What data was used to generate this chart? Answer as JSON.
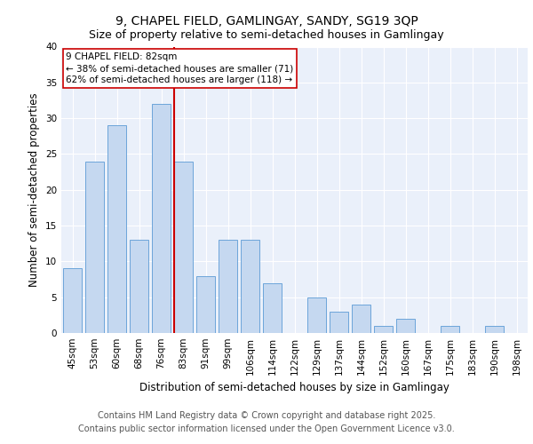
{
  "title": "9, CHAPEL FIELD, GAMLINGAY, SANDY, SG19 3QP",
  "subtitle": "Size of property relative to semi-detached houses in Gamlingay",
  "xlabel": "Distribution of semi-detached houses by size in Gamlingay",
  "ylabel": "Number of semi-detached properties",
  "categories": [
    "45sqm",
    "53sqm",
    "60sqm",
    "68sqm",
    "76sqm",
    "83sqm",
    "91sqm",
    "99sqm",
    "106sqm",
    "114sqm",
    "122sqm",
    "129sqm",
    "137sqm",
    "144sqm",
    "152sqm",
    "160sqm",
    "167sqm",
    "175sqm",
    "183sqm",
    "190sqm",
    "198sqm"
  ],
  "values": [
    9,
    24,
    29,
    13,
    32,
    24,
    8,
    13,
    13,
    7,
    0,
    5,
    3,
    4,
    1,
    2,
    0,
    1,
    0,
    1,
    0
  ],
  "bar_color": "#c5d8f0",
  "bar_edge_color": "#5b9bd5",
  "annotation_title": "9 CHAPEL FIELD: 82sqm",
  "annotation_line1": "← 38% of semi-detached houses are smaller (71)",
  "annotation_line2": "62% of semi-detached houses are larger (118) →",
  "annotation_box_color": "#ffffff",
  "annotation_box_edge": "#cc0000",
  "vline_color": "#cc0000",
  "vline_x": 4.57,
  "ylim": [
    0,
    40
  ],
  "yticks": [
    0,
    5,
    10,
    15,
    20,
    25,
    30,
    35,
    40
  ],
  "footer_line1": "Contains HM Land Registry data © Crown copyright and database right 2025.",
  "footer_line2": "Contains public sector information licensed under the Open Government Licence v3.0.",
  "bg_color": "#eaf0fa",
  "title_fontsize": 10,
  "subtitle_fontsize": 9,
  "axis_label_fontsize": 8.5,
  "tick_fontsize": 7.5,
  "annotation_fontsize": 7.5,
  "footer_fontsize": 7
}
